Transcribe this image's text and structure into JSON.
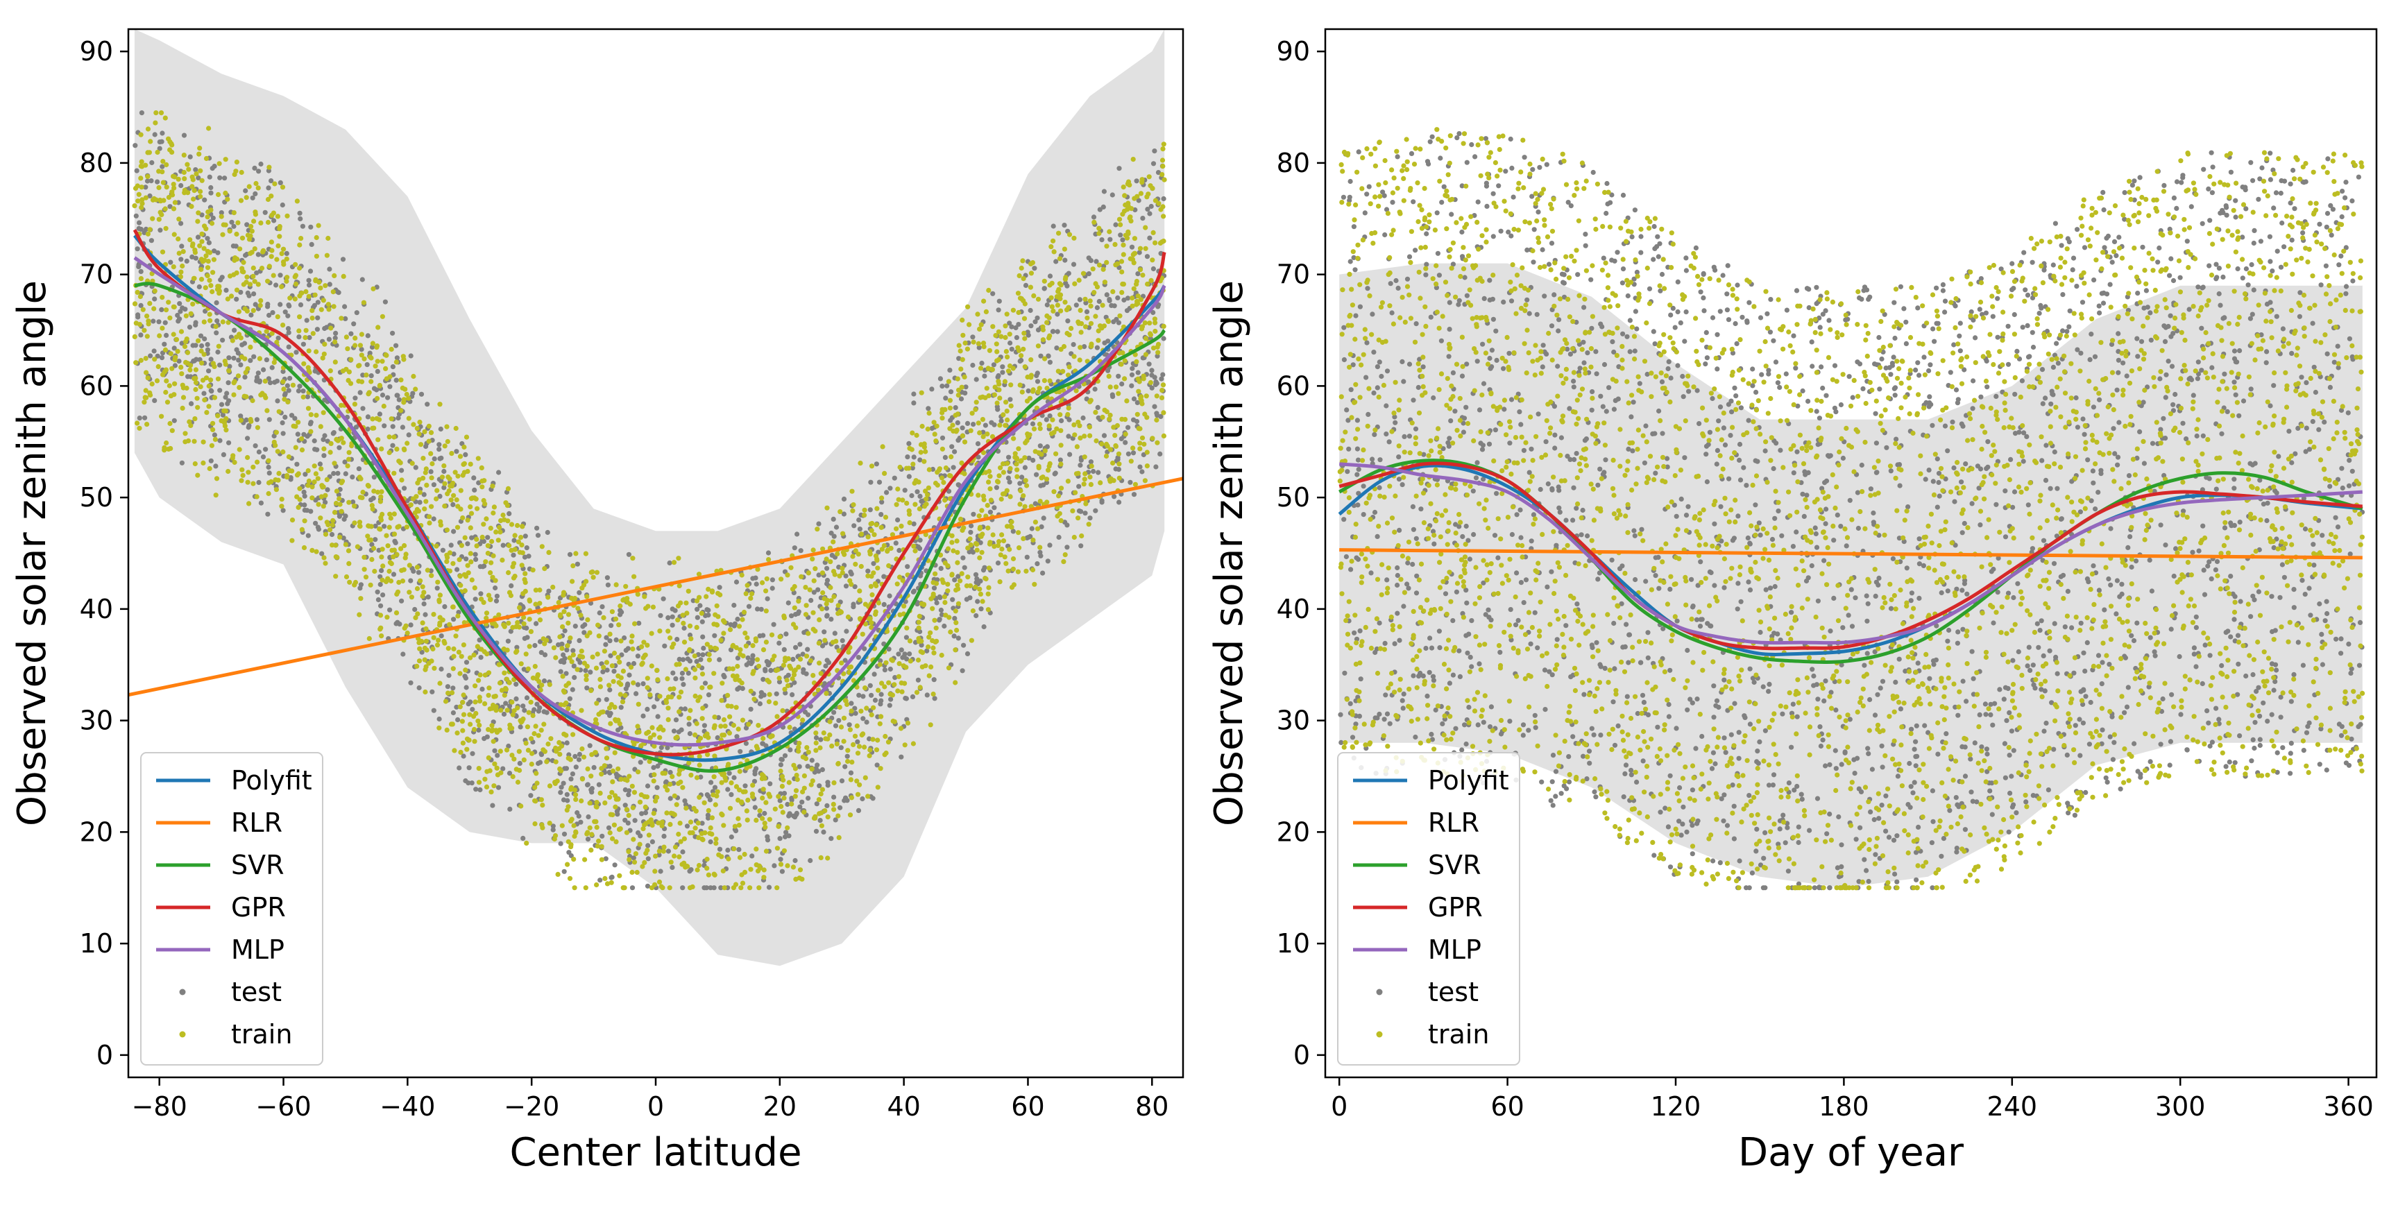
{
  "figure": {
    "background": "#ffffff"
  },
  "colors": {
    "Polyfit": "#1f77b4",
    "RLR": "#ff7f0e",
    "SVR": "#2ca02c",
    "GPR": "#d62728",
    "MLP": "#9467bd",
    "test": "#808080",
    "train": "#bcbd22",
    "band": "#d9d9d9"
  },
  "chart_data": [
    {
      "type": "scatter",
      "xlabel": "Center latitude",
      "ylabel": "Observed solar zenith angle",
      "xlim": [
        -85,
        85
      ],
      "ylim": [
        -2,
        92
      ],
      "xticks": [
        -80,
        -60,
        -40,
        -20,
        0,
        20,
        40,
        60,
        80
      ],
      "yticks": [
        0,
        10,
        20,
        30,
        40,
        50,
        60,
        70,
        80,
        90
      ],
      "grid": false,
      "legend_position": "lower-left",
      "legend": [
        "Polyfit",
        "RLR",
        "SVR",
        "GPR",
        "MLP",
        "test",
        "train"
      ],
      "band": {
        "x": [
          -84,
          -80,
          -70,
          -60,
          -50,
          -40,
          -30,
          -20,
          -10,
          0,
          10,
          20,
          30,
          40,
          50,
          60,
          70,
          80,
          82
        ],
        "upper": [
          92,
          91,
          88,
          86,
          83,
          77,
          66,
          56,
          49,
          47,
          47,
          49,
          55,
          61,
          67,
          79,
          86,
          90,
          92
        ],
        "lower": [
          54,
          50,
          46,
          44,
          33,
          24,
          20,
          19,
          19,
          15,
          9,
          8,
          10,
          16,
          29,
          35,
          39,
          43,
          47
        ]
      },
      "series": [
        {
          "name": "Polyfit",
          "x": [
            -84,
            -80,
            -70,
            -60,
            -50,
            -40,
            -30,
            -20,
            -10,
            0,
            10,
            20,
            30,
            40,
            50,
            60,
            70,
            80,
            82
          ],
          "y": [
            73.5,
            71,
            66.5,
            63,
            57,
            49,
            40,
            33,
            29,
            27,
            26.5,
            28,
            33,
            41,
            51,
            58,
            62,
            67.5,
            69
          ]
        },
        {
          "name": "RLR",
          "x": [
            -85,
            85
          ],
          "y": [
            32.3,
            51.7
          ]
        },
        {
          "name": "SVR",
          "x": [
            -84,
            -80,
            -70,
            -60,
            -50,
            -40,
            -30,
            -20,
            -10,
            0,
            10,
            20,
            30,
            40,
            50,
            60,
            70,
            80,
            82
          ],
          "y": [
            69,
            69,
            66.5,
            62,
            56,
            48,
            39,
            32.5,
            28.5,
            26.5,
            25.5,
            27.5,
            32,
            39,
            50,
            58,
            61,
            64,
            65
          ]
        },
        {
          "name": "GPR",
          "x": [
            -84,
            -80,
            -70,
            -60,
            -50,
            -40,
            -30,
            -20,
            -10,
            0,
            10,
            20,
            30,
            40,
            50,
            60,
            70,
            80,
            82
          ],
          "y": [
            74,
            70.5,
            66.5,
            64.5,
            58.5,
            49,
            39.5,
            32.5,
            28.5,
            27,
            27.5,
            30,
            36,
            45,
            53,
            57,
            60,
            68.5,
            72
          ]
        },
        {
          "name": "MLP",
          "x": [
            -84,
            -80,
            -70,
            -60,
            -50,
            -40,
            -30,
            -20,
            -10,
            0,
            10,
            20,
            30,
            40,
            50,
            60,
            70,
            80,
            82
          ],
          "y": [
            71.5,
            70,
            66.5,
            63,
            57,
            48.5,
            39.5,
            33,
            29.5,
            28,
            28,
            29.5,
            34.5,
            42,
            51.5,
            57,
            61,
            67,
            69
          ]
        }
      ]
    },
    {
      "type": "scatter",
      "xlabel": "Day of year",
      "ylabel": "Observed solar zenith angle",
      "xlim": [
        -5,
        370
      ],
      "ylim": [
        -2,
        92
      ],
      "xticks": [
        0,
        60,
        120,
        180,
        240,
        300,
        360
      ],
      "yticks": [
        0,
        10,
        20,
        30,
        40,
        50,
        60,
        70,
        80,
        90
      ],
      "grid": false,
      "legend_position": "lower-left",
      "legend": [
        "Polyfit",
        "RLR",
        "SVR",
        "GPR",
        "MLP",
        "test",
        "train"
      ],
      "band": {
        "x": [
          0,
          30,
          60,
          90,
          120,
          150,
          180,
          210,
          240,
          270,
          300,
          330,
          365
        ],
        "upper": [
          70,
          71,
          71,
          68,
          62,
          57,
          57,
          57,
          60,
          66,
          69,
          69,
          69
        ],
        "lower": [
          28,
          28,
          27,
          24,
          19,
          16,
          15,
          16,
          20,
          26,
          28,
          28,
          28
        ]
      },
      "series": [
        {
          "name": "Polyfit",
          "x": [
            0,
            15,
            30,
            45,
            60,
            75,
            90,
            105,
            120,
            135,
            150,
            165,
            180,
            195,
            210,
            225,
            240,
            255,
            270,
            285,
            300,
            315,
            330,
            345,
            365
          ],
          "y": [
            48.5,
            51.5,
            52.8,
            52.5,
            51,
            48.5,
            45,
            41.5,
            38.5,
            37,
            36,
            36,
            36.2,
            37,
            38.5,
            40.5,
            43,
            45.5,
            47.5,
            49,
            50,
            50.2,
            50,
            49.5,
            49
          ]
        },
        {
          "name": "RLR",
          "x": [
            0,
            365
          ],
          "y": [
            45.3,
            44.6
          ]
        },
        {
          "name": "SVR",
          "x": [
            0,
            15,
            30,
            45,
            60,
            75,
            90,
            105,
            120,
            135,
            150,
            165,
            180,
            195,
            210,
            225,
            240,
            255,
            270,
            285,
            300,
            315,
            330,
            345,
            365
          ],
          "y": [
            50.5,
            52.5,
            53.3,
            53,
            51.5,
            48.5,
            44.5,
            40.5,
            38,
            36.5,
            35.6,
            35.3,
            35.3,
            36,
            37.5,
            40,
            43,
            46,
            48.5,
            50.5,
            51.7,
            52.2,
            51.8,
            50.5,
            49
          ]
        },
        {
          "name": "GPR",
          "x": [
            0,
            15,
            30,
            45,
            60,
            75,
            90,
            105,
            120,
            135,
            150,
            165,
            180,
            195,
            210,
            225,
            240,
            255,
            270,
            285,
            300,
            315,
            330,
            345,
            365
          ],
          "y": [
            51,
            52,
            53,
            52.8,
            51.5,
            48.5,
            45,
            41,
            38.5,
            37,
            36.5,
            36.5,
            36.6,
            37.5,
            39,
            41,
            43.5,
            46,
            48.5,
            50,
            50.5,
            50.3,
            50,
            49.6,
            49.2
          ]
        },
        {
          "name": "MLP",
          "x": [
            0,
            15,
            30,
            45,
            60,
            75,
            90,
            105,
            120,
            135,
            150,
            165,
            180,
            195,
            210,
            225,
            240,
            255,
            270,
            285,
            300,
            315,
            330,
            345,
            365
          ],
          "y": [
            53,
            52.7,
            52,
            51.5,
            50.5,
            48,
            44.5,
            41,
            38.5,
            37.5,
            37,
            37,
            37,
            37.5,
            38.5,
            40.5,
            43,
            45.5,
            47.5,
            48.8,
            49.5,
            49.8,
            50,
            50.2,
            50.5
          ]
        }
      ]
    }
  ]
}
